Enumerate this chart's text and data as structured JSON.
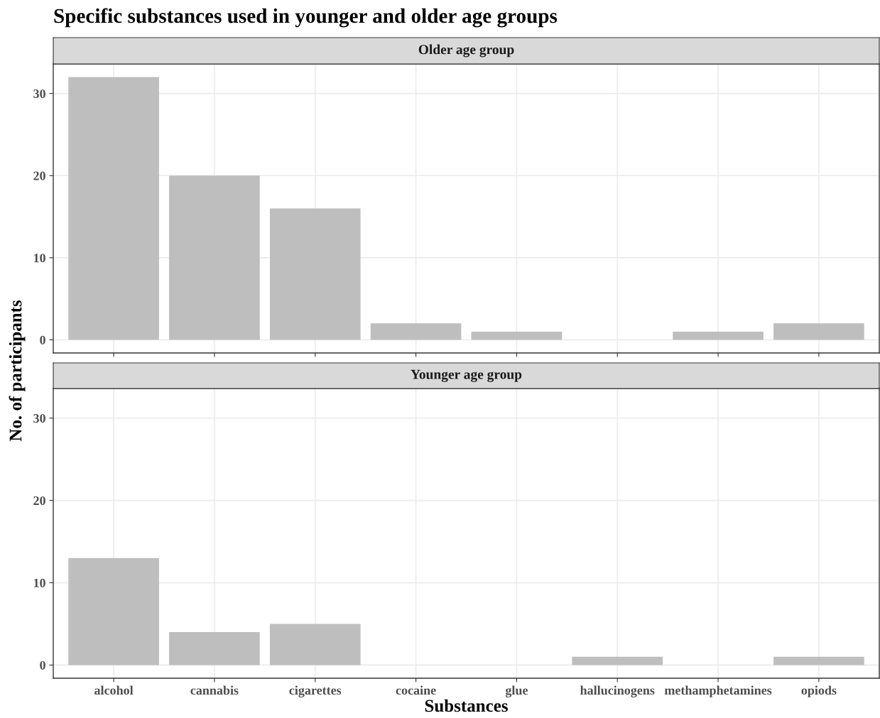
{
  "chart_data": [
    {
      "type": "bar",
      "title": "Specific substances used in younger and older age groups",
      "subtitle": "Older age group",
      "ylabel": "No. of participants",
      "categories": [
        null,
        null,
        null,
        null,
        null,
        null,
        null,
        null
      ],
      "series": [
        {
          "color": "#bebebe",
          "values": [
            32,
            20,
            16,
            2,
            1,
            0,
            1,
            2
          ]
        }
      ],
      "ylim": [
        -1.6,
        33.6
      ],
      "yticks": [
        0,
        10,
        20,
        30
      ],
      "grid": true,
      "tick_labels": "y"
    },
    {
      "type": "bar",
      "subtitle": "Younger age group",
      "xlabel": "Substances",
      "categories": [
        "alcohol",
        "cannabis",
        "cigarettes",
        "cocaine",
        "glue",
        "hallucinogens",
        "methamphetamines",
        "opiods"
      ],
      "series": [
        {
          "color": "#bebebe",
          "values": [
            13,
            4,
            5,
            0,
            0,
            1,
            0,
            1
          ]
        }
      ],
      "ylim": [
        -1.6,
        33.6
      ],
      "yticks": [
        0,
        10,
        20,
        30
      ],
      "grid": true
    }
  ]
}
